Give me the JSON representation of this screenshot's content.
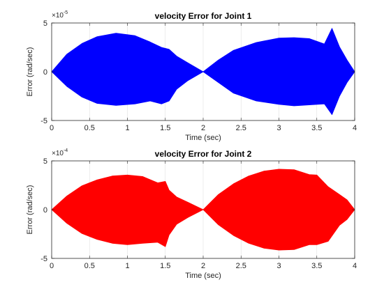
{
  "figure": {
    "background": "#ffffff"
  },
  "chart_data": [
    {
      "type": "line",
      "title": "velocity Error for Joint 1",
      "xlabel": "Time (sec)",
      "ylabel": "Error (rad/sec)",
      "exponent_base": "×10",
      "exponent_power": "-5",
      "xlim": [
        0,
        4
      ],
      "ylim": [
        -5,
        5
      ],
      "xticks": [
        "0",
        "0.5",
        "1",
        "1.5",
        "2",
        "2.5",
        "3",
        "3.5",
        "4"
      ],
      "yticks": [
        "-5",
        "0",
        "5"
      ],
      "grid": "x",
      "color": "#0000ff",
      "series": [
        {
          "x": [
            0,
            0.2,
            0.4,
            0.6,
            0.85,
            1.1,
            1.3,
            1.45,
            1.55,
            1.65,
            1.8,
            2.0,
            2.2,
            2.4,
            2.7,
            3.0,
            3.2,
            3.4,
            3.6,
            3.7,
            3.8,
            3.9,
            4.0
          ],
          "upper": [
            0,
            1.8,
            2.9,
            3.6,
            3.95,
            3.7,
            3.05,
            2.5,
            2.3,
            1.6,
            0.9,
            0,
            1.2,
            2.2,
            3.0,
            3.45,
            3.5,
            3.4,
            2.85,
            4.45,
            2.55,
            1.2,
            0
          ],
          "lower": [
            0,
            -1.5,
            -2.6,
            -3.25,
            -3.45,
            -3.3,
            -3.0,
            -3.3,
            -3.0,
            -1.8,
            -0.9,
            0,
            -1.1,
            -2.2,
            -3.0,
            -3.35,
            -3.5,
            -3.4,
            -3.3,
            -4.4,
            -2.5,
            -1.1,
            0
          ]
        }
      ]
    },
    {
      "type": "line",
      "title": "velocity Error for Joint 2",
      "xlabel": "Time (sec)",
      "ylabel": "Error (rad/sec)",
      "exponent_base": "×10",
      "exponent_power": "-4",
      "xlim": [
        0,
        4
      ],
      "ylim": [
        -5,
        5
      ],
      "xticks": [
        "0",
        "0.5",
        "1",
        "1.5",
        "2",
        "2.5",
        "3",
        "3.5",
        "4"
      ],
      "yticks": [
        "-5",
        "0",
        "5"
      ],
      "grid": "x",
      "color": "#ff0000",
      "series": [
        {
          "x": [
            0,
            0.2,
            0.4,
            0.6,
            0.8,
            1.0,
            1.2,
            1.4,
            1.5,
            1.55,
            1.65,
            1.8,
            2.0,
            2.2,
            2.4,
            2.6,
            2.8,
            3.0,
            3.2,
            3.4,
            3.5,
            3.65,
            3.8,
            3.9,
            4.0
          ],
          "upper": [
            0,
            1.4,
            2.45,
            3.05,
            3.45,
            3.55,
            3.4,
            2.75,
            2.9,
            2.0,
            1.3,
            0.75,
            0,
            1.55,
            2.65,
            3.45,
            3.95,
            4.15,
            4.1,
            3.6,
            3.55,
            2.35,
            1.55,
            1.0,
            0
          ],
          "lower": [
            0,
            -1.4,
            -2.45,
            -3.05,
            -3.45,
            -3.6,
            -3.45,
            -3.35,
            -3.8,
            -2.6,
            -1.5,
            -0.8,
            0,
            -1.55,
            -2.65,
            -3.45,
            -3.95,
            -4.15,
            -4.1,
            -3.6,
            -3.6,
            -3.25,
            -1.6,
            -1.0,
            0
          ]
        }
      ]
    }
  ]
}
